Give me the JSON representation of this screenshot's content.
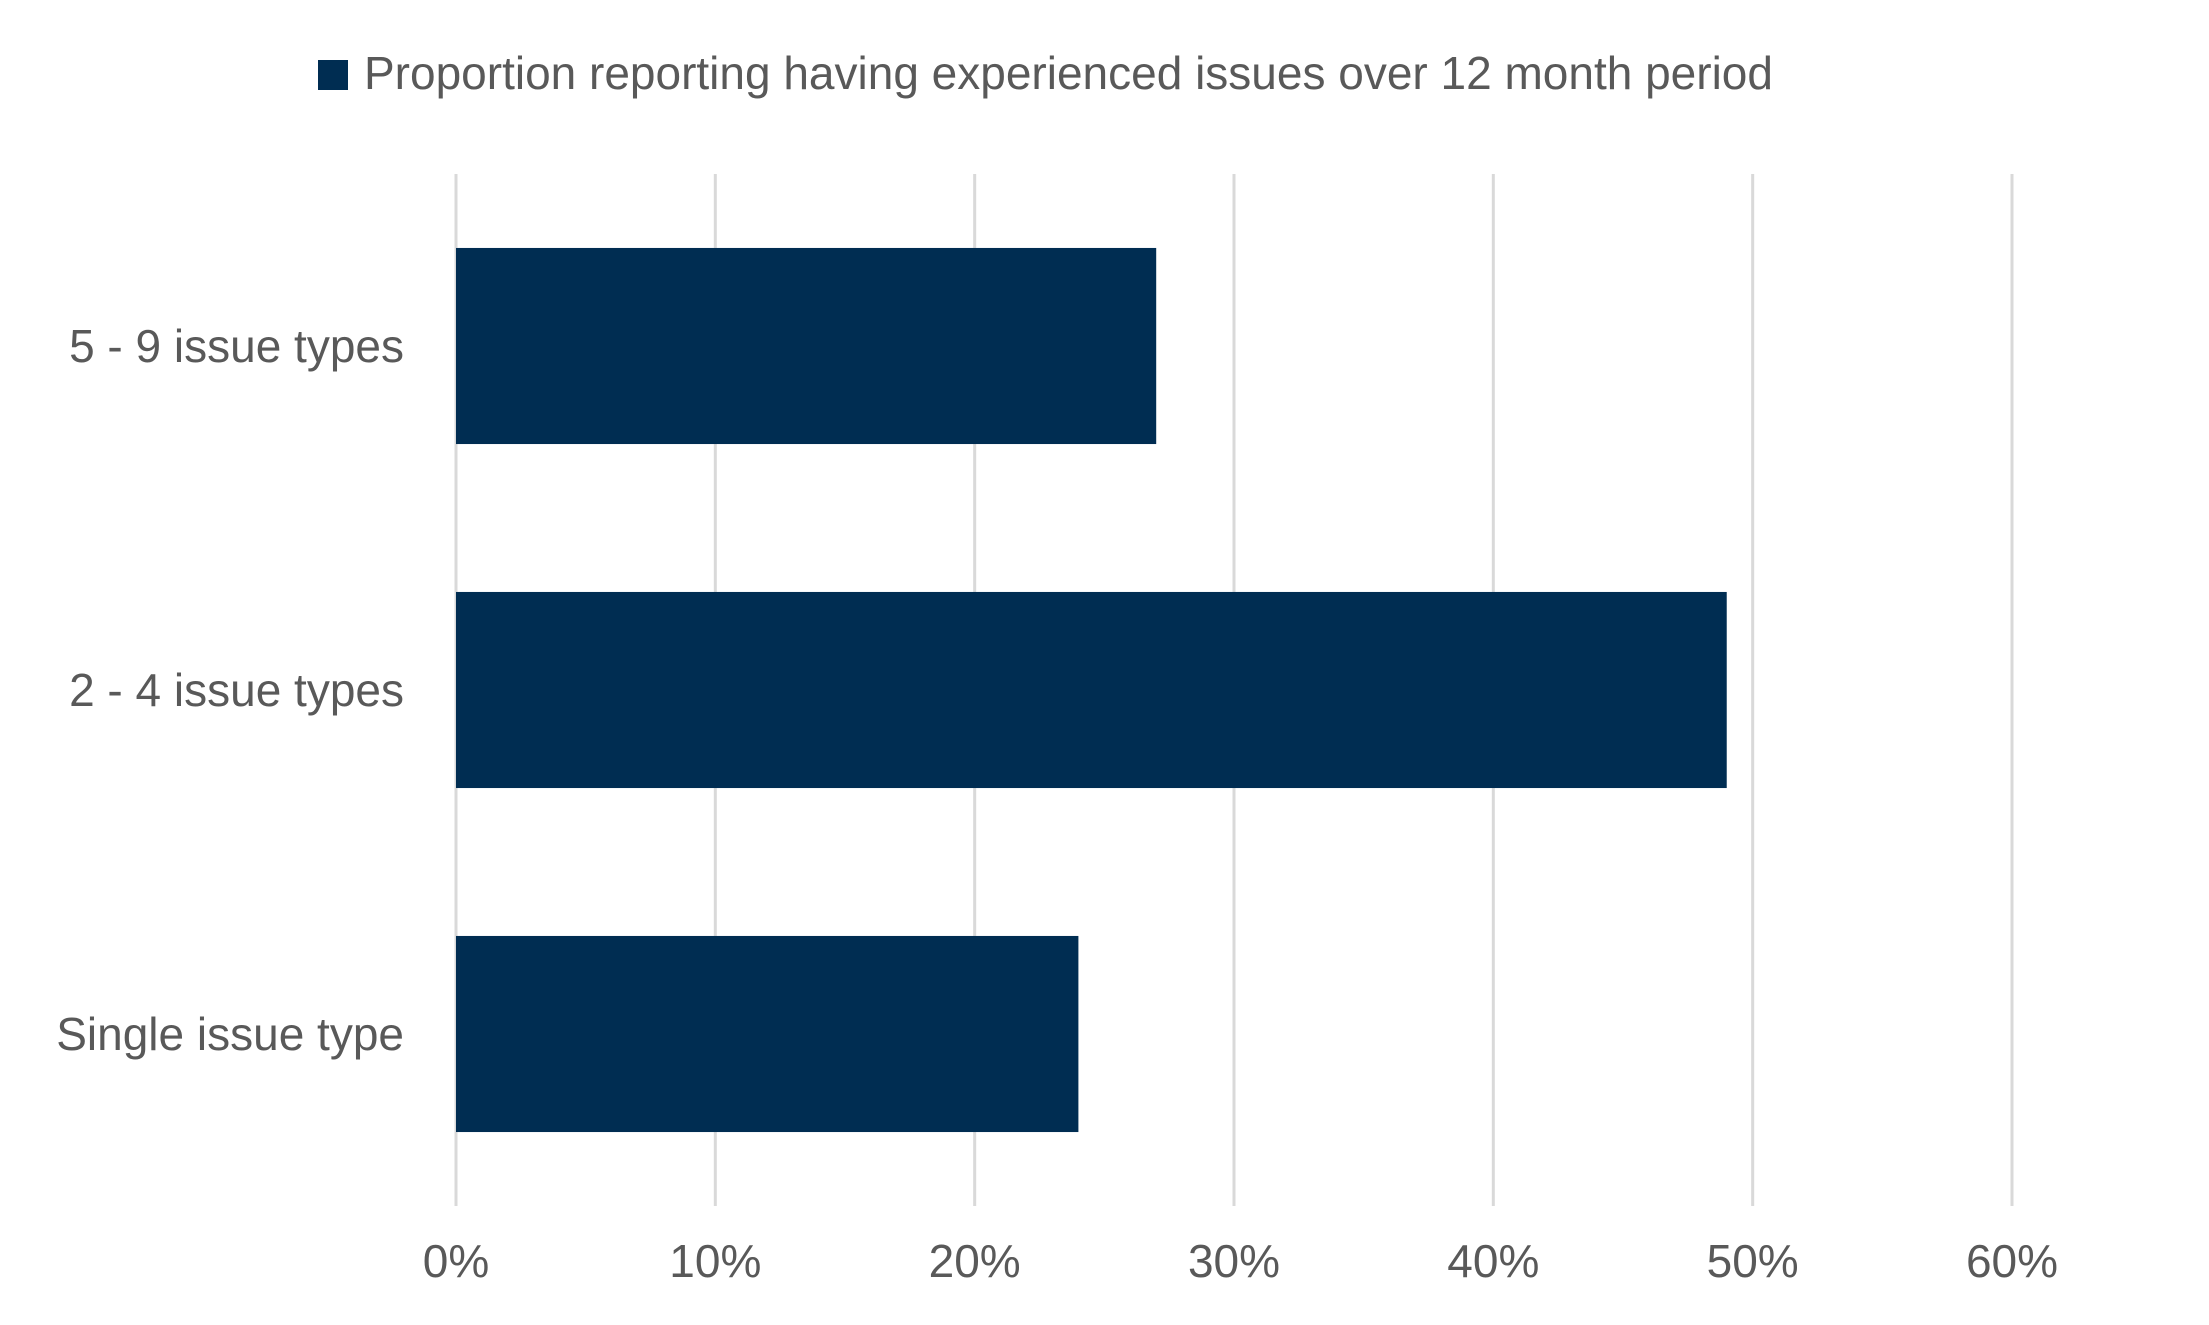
{
  "chart_data": {
    "type": "bar",
    "orientation": "horizontal",
    "categories": [
      "5 - 9 issue types",
      "2 - 4 issue types",
      "Single issue type"
    ],
    "series": [
      {
        "name": "Proportion reporting having experienced issues over 12 month period",
        "values": [
          27,
          49,
          24
        ],
        "color": "#002D52"
      }
    ],
    "xlim": [
      0,
      60
    ],
    "x_ticks": [
      0,
      10,
      20,
      30,
      40,
      50,
      60
    ],
    "x_tick_labels": [
      "0%",
      "10%",
      "20%",
      "30%",
      "40%",
      "50%",
      "60%"
    ],
    "value_unit": "%",
    "grid": "vertical",
    "legend_position": "top"
  },
  "colors": {
    "bar": "#002D52",
    "text": "#595959",
    "grid": "#d9d9d9"
  }
}
